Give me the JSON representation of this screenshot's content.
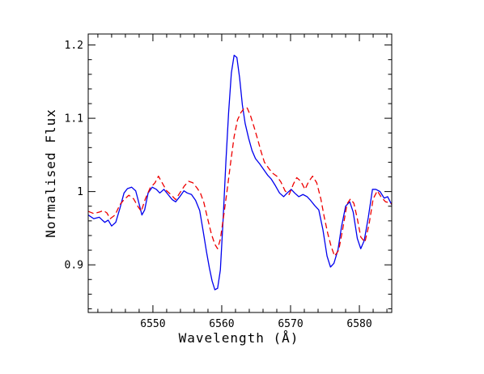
{
  "chart_data": {
    "type": "line",
    "title": "",
    "xlabel": "Wavelength (Å)",
    "ylabel": "Normalised Flux",
    "xlim": [
      6540.6,
      6584.7
    ],
    "ylim": [
      0.835,
      1.215
    ],
    "grid": false,
    "legend": "none",
    "x_ticks": [
      6550,
      6560,
      6570,
      6580
    ],
    "x_tick_labels": [
      "6550",
      "6560",
      "6570",
      "6580"
    ],
    "y_ticks": [
      0.9,
      1.0,
      1.1,
      1.2
    ],
    "y_tick_labels": [
      "0.9",
      "1",
      "1.1",
      "1.2"
    ],
    "x_minor_step": 2,
    "y_minor_step": 0.02,
    "series": [
      {
        "color": "#0000ee",
        "style": "solid",
        "points": [
          [
            6540.6,
            0.968
          ],
          [
            6541.4,
            0.963
          ],
          [
            6542.2,
            0.965
          ],
          [
            6543.0,
            0.958
          ],
          [
            6543.5,
            0.961
          ],
          [
            6544.0,
            0.953
          ],
          [
            6544.6,
            0.958
          ],
          [
            6545.2,
            0.977
          ],
          [
            6545.8,
            0.998
          ],
          [
            6546.3,
            1.004
          ],
          [
            6546.9,
            1.006
          ],
          [
            6547.5,
            1.001
          ],
          [
            6548.0,
            0.983
          ],
          [
            6548.4,
            0.968
          ],
          [
            6548.8,
            0.975
          ],
          [
            6549.3,
            0.998
          ],
          [
            6549.9,
            1.006
          ],
          [
            6550.5,
            1.003
          ],
          [
            6551.0,
            0.998
          ],
          [
            6551.6,
            1.003
          ],
          [
            6552.2,
            0.996
          ],
          [
            6552.8,
            0.989
          ],
          [
            6553.3,
            0.986
          ],
          [
            6553.9,
            0.993
          ],
          [
            6554.5,
            1.001
          ],
          [
            6555.0,
            0.998
          ],
          [
            6555.6,
            0.996
          ],
          [
            6556.2,
            0.988
          ],
          [
            6556.8,
            0.974
          ],
          [
            6557.3,
            0.946
          ],
          [
            6557.8,
            0.917
          ],
          [
            6558.2,
            0.896
          ],
          [
            6558.6,
            0.878
          ],
          [
            6559.0,
            0.866
          ],
          [
            6559.4,
            0.868
          ],
          [
            6559.8,
            0.893
          ],
          [
            6560.2,
            0.962
          ],
          [
            6560.6,
            1.04
          ],
          [
            6561.0,
            1.108
          ],
          [
            6561.4,
            1.162
          ],
          [
            6561.8,
            1.186
          ],
          [
            6562.2,
            1.183
          ],
          [
            6562.6,
            1.155
          ],
          [
            6563.0,
            1.118
          ],
          [
            6563.4,
            1.093
          ],
          [
            6563.9,
            1.073
          ],
          [
            6564.4,
            1.056
          ],
          [
            6564.9,
            1.045
          ],
          [
            6565.5,
            1.038
          ],
          [
            6566.1,
            1.03
          ],
          [
            6566.7,
            1.022
          ],
          [
            6567.2,
            1.017
          ],
          [
            6567.8,
            1.008
          ],
          [
            6568.4,
            0.998
          ],
          [
            6569.0,
            0.993
          ],
          [
            6569.5,
            0.998
          ],
          [
            6570.1,
            1.003
          ],
          [
            6570.6,
            0.998
          ],
          [
            6571.2,
            0.993
          ],
          [
            6571.8,
            0.996
          ],
          [
            6572.4,
            0.993
          ],
          [
            6572.9,
            0.988
          ],
          [
            6573.5,
            0.981
          ],
          [
            6574.1,
            0.975
          ],
          [
            6574.7,
            0.948
          ],
          [
            6575.3,
            0.912
          ],
          [
            6575.8,
            0.897
          ],
          [
            6576.3,
            0.902
          ],
          [
            6576.9,
            0.921
          ],
          [
            6577.4,
            0.952
          ],
          [
            6578.0,
            0.98
          ],
          [
            6578.6,
            0.986
          ],
          [
            6579.1,
            0.972
          ],
          [
            6579.7,
            0.936
          ],
          [
            6580.2,
            0.922
          ],
          [
            6580.7,
            0.933
          ],
          [
            6581.3,
            0.965
          ],
          [
            6581.9,
            1.003
          ],
          [
            6582.4,
            1.003
          ],
          [
            6583.0,
            1.0
          ],
          [
            6583.6,
            0.991
          ],
          [
            6584.1,
            0.993
          ],
          [
            6584.7,
            0.982
          ]
        ]
      },
      {
        "color": "#ee0000",
        "style": "dashed",
        "points": [
          [
            6540.6,
            0.973
          ],
          [
            6541.4,
            0.97
          ],
          [
            6542.2,
            0.972
          ],
          [
            6542.8,
            0.974
          ],
          [
            6543.3,
            0.971
          ],
          [
            6543.8,
            0.963
          ],
          [
            6544.5,
            0.968
          ],
          [
            6545.2,
            0.982
          ],
          [
            6545.8,
            0.989
          ],
          [
            6546.5,
            0.995
          ],
          [
            6547.2,
            0.99
          ],
          [
            6547.8,
            0.98
          ],
          [
            6548.3,
            0.973
          ],
          [
            6548.9,
            0.99
          ],
          [
            6549.6,
            1.005
          ],
          [
            6550.3,
            1.012
          ],
          [
            6550.8,
            1.021
          ],
          [
            6551.4,
            1.011
          ],
          [
            6552.0,
            1.001
          ],
          [
            6552.6,
            0.996
          ],
          [
            6553.3,
            0.989
          ],
          [
            6553.9,
            0.998
          ],
          [
            6554.6,
            1.008
          ],
          [
            6555.2,
            1.014
          ],
          [
            6555.8,
            1.012
          ],
          [
            6556.4,
            1.005
          ],
          [
            6556.9,
            0.998
          ],
          [
            6557.4,
            0.985
          ],
          [
            6557.9,
            0.965
          ],
          [
            6558.5,
            0.942
          ],
          [
            6559.0,
            0.928
          ],
          [
            6559.4,
            0.922
          ],
          [
            6559.8,
            0.935
          ],
          [
            6560.3,
            0.968
          ],
          [
            6560.8,
            1.003
          ],
          [
            6561.3,
            1.04
          ],
          [
            6561.8,
            1.075
          ],
          [
            6562.3,
            1.098
          ],
          [
            6562.8,
            1.108
          ],
          [
            6563.3,
            1.114
          ],
          [
            6563.7,
            1.114
          ],
          [
            6564.2,
            1.103
          ],
          [
            6564.7,
            1.088
          ],
          [
            6565.2,
            1.072
          ],
          [
            6565.7,
            1.055
          ],
          [
            6566.2,
            1.04
          ],
          [
            6566.8,
            1.032
          ],
          [
            6567.4,
            1.025
          ],
          [
            6568.0,
            1.021
          ],
          [
            6568.6,
            1.013
          ],
          [
            6569.2,
            1.001
          ],
          [
            6569.8,
            0.996
          ],
          [
            6570.4,
            1.01
          ],
          [
            6570.9,
            1.019
          ],
          [
            6571.5,
            1.014
          ],
          [
            6572.1,
            1.003
          ],
          [
            6572.6,
            1.013
          ],
          [
            6573.2,
            1.021
          ],
          [
            6573.8,
            1.012
          ],
          [
            6574.4,
            0.99
          ],
          [
            6574.9,
            0.965
          ],
          [
            6575.4,
            0.943
          ],
          [
            6575.9,
            0.925
          ],
          [
            6576.4,
            0.912
          ],
          [
            6577.0,
            0.92
          ],
          [
            6577.6,
            0.95
          ],
          [
            6578.2,
            0.983
          ],
          [
            6578.7,
            0.99
          ],
          [
            6579.2,
            0.984
          ],
          [
            6579.7,
            0.963
          ],
          [
            6580.2,
            0.938
          ],
          [
            6580.8,
            0.931
          ],
          [
            6581.4,
            0.955
          ],
          [
            6582.0,
            0.99
          ],
          [
            6582.6,
            1.001
          ],
          [
            6583.2,
            0.992
          ],
          [
            6583.8,
            0.986
          ],
          [
            6584.3,
            0.985
          ],
          [
            6584.7,
            0.983
          ]
        ]
      }
    ]
  }
}
